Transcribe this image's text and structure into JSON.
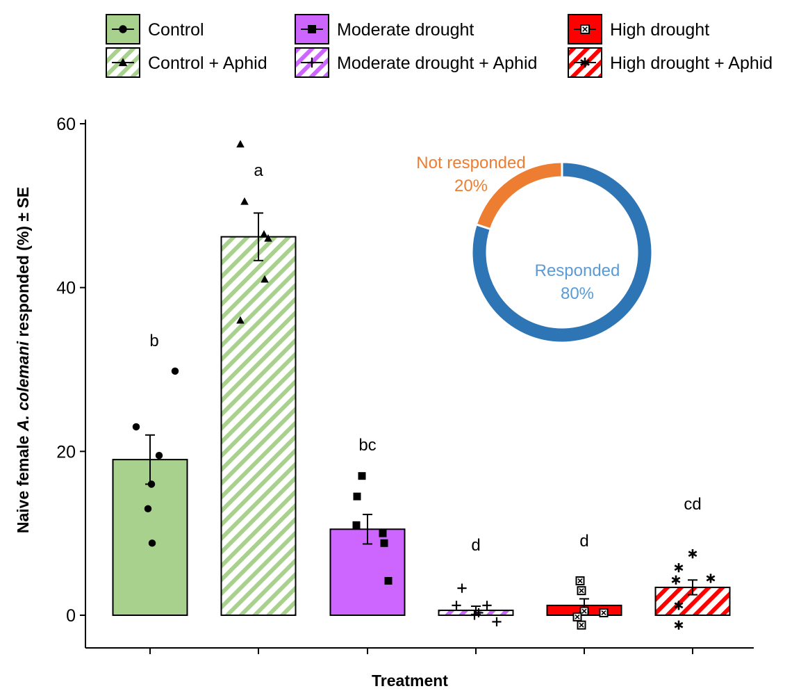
{
  "chart_data": [
    {
      "type": "bar",
      "xlabel": "Treatment",
      "ylabel_prefix": "Naive female ",
      "ylabel_italic": "A. colemani",
      "ylabel_suffix": " responded (%) ± SE",
      "ylim": [
        0,
        60
      ],
      "yticks": [
        "0",
        "20",
        "40",
        "60"
      ],
      "grid": false,
      "legend": "top",
      "series": [
        {
          "name": "Control",
          "mean": 19,
          "se": 3,
          "letter": "b",
          "fill": "#a9d18e",
          "hatch": false,
          "marker": "circle",
          "points": [
            29.8,
            23.0,
            19.5,
            16.0,
            13.0,
            8.8
          ]
        },
        {
          "name": "Control + Aphid",
          "mean": 46.2,
          "se": 2.9,
          "letter": "a",
          "fill": "#a9d18e",
          "hatch": true,
          "marker": "triangle",
          "points": [
            57.5,
            50.5,
            46.5,
            46.0,
            41.0,
            36.0
          ]
        },
        {
          "name": "Moderate drought",
          "mean": 10.5,
          "se": 1.8,
          "letter": "bc",
          "fill": "#cc66ff",
          "hatch": false,
          "marker": "square",
          "points": [
            17.0,
            14.5,
            11.0,
            10.0,
            8.8,
            4.2
          ]
        },
        {
          "name": "Moderate drought + Aphid",
          "mean": 0.6,
          "se": 0.5,
          "letter": "d",
          "fill": "#cc66ff",
          "hatch": true,
          "marker": "plus",
          "points": [
            3.3,
            1.2,
            1.2,
            0.3,
            0.0,
            -0.8
          ]
        },
        {
          "name": "High drought",
          "mean": 1.2,
          "se": 0.8,
          "letter": "d",
          "fill": "#ff0000",
          "hatch": false,
          "marker": "boxx",
          "points": [
            4.2,
            3.0,
            0.5,
            0.3,
            -0.2,
            -1.2
          ]
        },
        {
          "name": "High drought + Aphid",
          "mean": 3.4,
          "se": 0.9,
          "letter": "cd",
          "fill": "#ff0000",
          "hatch": true,
          "marker": "asterisk",
          "points": [
            7.5,
            5.8,
            4.5,
            4.3,
            1.2,
            -1.2
          ]
        }
      ]
    },
    {
      "type": "pie",
      "style": "donut",
      "slices": [
        {
          "label": "Responded",
          "value": 80,
          "percent_label": "80%",
          "color": "#2e75b6",
          "label_color": "#5b9bd5"
        },
        {
          "label": "Not responded",
          "value": 20,
          "percent_label": "20%",
          "color": "#ed7d31",
          "label_color": "#ed7d31"
        }
      ]
    }
  ]
}
